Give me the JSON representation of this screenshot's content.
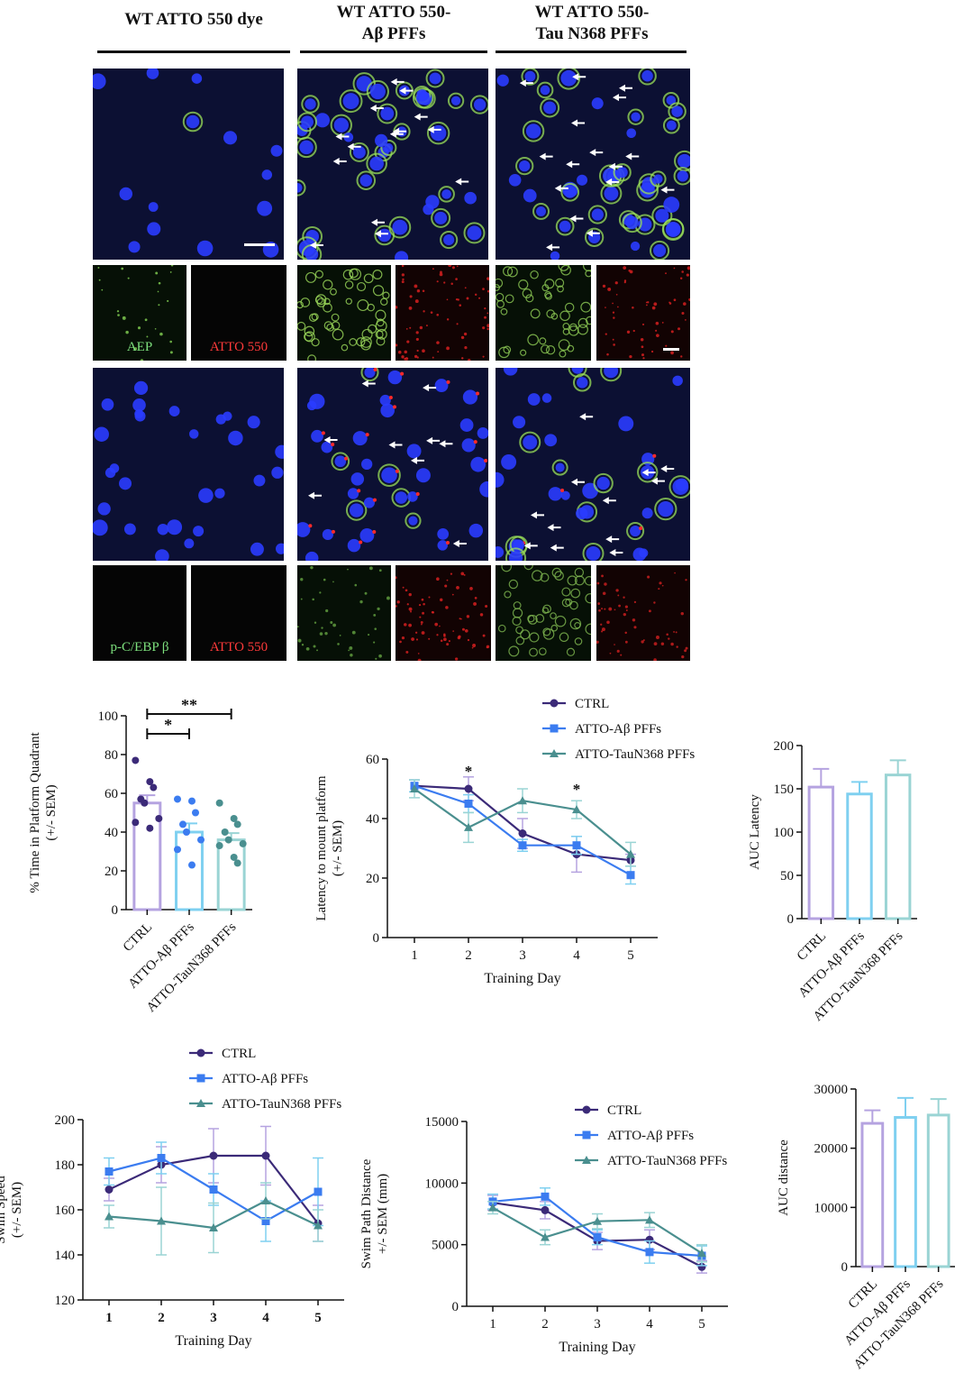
{
  "columns": [
    {
      "title_lines": [
        "WT ATTO 550 dye"
      ]
    },
    {
      "title_lines": [
        "WT ATTO 550-",
        "Aβ PFFs"
      ]
    },
    {
      "title_lines": [
        "WT ATTO 550-",
        "Tau N368 PFFs"
      ]
    }
  ],
  "micro_labels": {
    "row1_green": "AEP",
    "row1_red": "ATTO 550",
    "row2_green": "p-C/EBP β",
    "row2_red": "ATTO 550"
  },
  "colors": {
    "ctrl": "#3b2a78",
    "abeta": "#3b7cf0",
    "tau": "#4a8f8f",
    "ctrl_light": "#b5a3e0",
    "abeta_light": "#7fd0f0",
    "tau_light": "#9ad4d4",
    "nuclei": "#2a3cff",
    "green_signal": "#9be25a",
    "red_signal": "#ff2a2a"
  },
  "chart_data": [
    {
      "id": "quadrant",
      "type": "bar",
      "categories": [
        "CTRL",
        "ATTO-Aβ PFFs",
        "ATTO-TauN368 PFFs"
      ],
      "values": [
        55,
        40,
        36
      ],
      "errors": [
        4,
        4.5,
        3.5
      ],
      "points": [
        [
          77,
          66,
          63,
          57,
          55,
          47,
          45,
          42
        ],
        [
          57,
          56,
          50,
          44,
          40,
          36,
          31,
          23
        ],
        [
          55,
          47,
          44,
          40,
          36,
          34,
          33,
          27,
          24
        ]
      ],
      "ylabel": "% Time in Platform Quadrant\n(+/- SEM)",
      "ylim": [
        0,
        100
      ],
      "yticks": [
        0,
        20,
        40,
        60,
        80,
        100
      ],
      "significance": [
        {
          "from": 0,
          "to": 2,
          "label": "**"
        },
        {
          "from": 0,
          "to": 1,
          "label": "*"
        }
      ]
    },
    {
      "id": "latency",
      "type": "line",
      "x": [
        1,
        2,
        3,
        4,
        5
      ],
      "series": [
        {
          "name": "CTRL",
          "values": [
            51,
            50,
            35,
            28,
            26
          ],
          "errors": [
            2,
            4,
            5,
            6,
            2
          ]
        },
        {
          "name": "ATTO-Aβ PFFs",
          "values": [
            51,
            45,
            31,
            31,
            21
          ],
          "errors": [
            2,
            3,
            2,
            3,
            3
          ]
        },
        {
          "name": "ATTO-TauN368 PFFs",
          "values": [
            50,
            37,
            46,
            43,
            28
          ],
          "errors": [
            3,
            5,
            4,
            3,
            4
          ]
        }
      ],
      "xlabel": "Training Day",
      "ylabel": "Latency to mount platform\n(+/- SEM)",
      "ylim": [
        0,
        60
      ],
      "yticks": [
        0,
        20,
        40,
        60
      ],
      "annotations": [
        {
          "x": 2,
          "y": 56,
          "label": "*"
        },
        {
          "x": 4,
          "y": 50,
          "label": "*"
        }
      ],
      "legend": "top"
    },
    {
      "id": "auc_latency",
      "type": "bar",
      "categories": [
        "CTRL",
        "ATTO-Aβ PFFs",
        "ATTO-TauN368 PFFs"
      ],
      "values": [
        152,
        144,
        166
      ],
      "errors": [
        21,
        14,
        17
      ],
      "ylabel": "AUC Latency",
      "ylim": [
        0,
        200
      ],
      "yticks": [
        0,
        50,
        100,
        150,
        200
      ]
    },
    {
      "id": "speed",
      "type": "line",
      "x": [
        1,
        2,
        3,
        4,
        5
      ],
      "series": [
        {
          "name": "CTRL",
          "values": [
            169,
            180,
            184,
            184,
            154
          ],
          "errors": [
            5,
            8,
            12,
            13,
            8
          ]
        },
        {
          "name": "ATTO-Aβ PFFs",
          "values": [
            177,
            183,
            169,
            155,
            168
          ],
          "errors": [
            6,
            7,
            7,
            9,
            15
          ]
        },
        {
          "name": "ATTO-TauN368 PFFs",
          "values": [
            157,
            155,
            152,
            164,
            153
          ],
          "errors": [
            5,
            15,
            11,
            8,
            7
          ]
        }
      ],
      "xlabel": "Training Day",
      "ylabel": "Swim Speed\n(+/- SEM)",
      "ylim": [
        120,
        200
      ],
      "yticks": [
        120,
        140,
        160,
        180,
        200
      ],
      "legend": "top"
    },
    {
      "id": "distance",
      "type": "line",
      "x": [
        1,
        2,
        3,
        4,
        5
      ],
      "series": [
        {
          "name": "CTRL",
          "values": [
            8400,
            7800,
            5300,
            5400,
            3200
          ],
          "errors": [
            600,
            700,
            700,
            800,
            500
          ]
        },
        {
          "name": "ATTO-Aβ PFFs",
          "values": [
            8500,
            8900,
            5600,
            4400,
            4100
          ],
          "errors": [
            600,
            700,
            600,
            900,
            800
          ]
        },
        {
          "name": "ATTO-TauN368 PFFs",
          "values": [
            8000,
            5600,
            6900,
            7000,
            4300
          ],
          "errors": [
            500,
            600,
            600,
            600,
            700
          ]
        }
      ],
      "xlabel": "Training Day",
      "ylabel": "Swim Path Distance\n+/- SEM (mm)",
      "ylim": [
        0,
        15000
      ],
      "yticks": [
        0,
        5000,
        10000,
        15000
      ],
      "legend": "top-right"
    },
    {
      "id": "auc_distance",
      "type": "bar",
      "categories": [
        "CTRL",
        "ATTO-Aβ PFFs",
        "ATTO-TauN368 PFFs"
      ],
      "values": [
        24200,
        25200,
        25600
      ],
      "errors": [
        2200,
        3300,
        2700
      ],
      "ylabel": "AUC distance",
      "ylim": [
        0,
        30000
      ],
      "yticks": [
        0,
        10000,
        20000,
        30000
      ]
    }
  ]
}
